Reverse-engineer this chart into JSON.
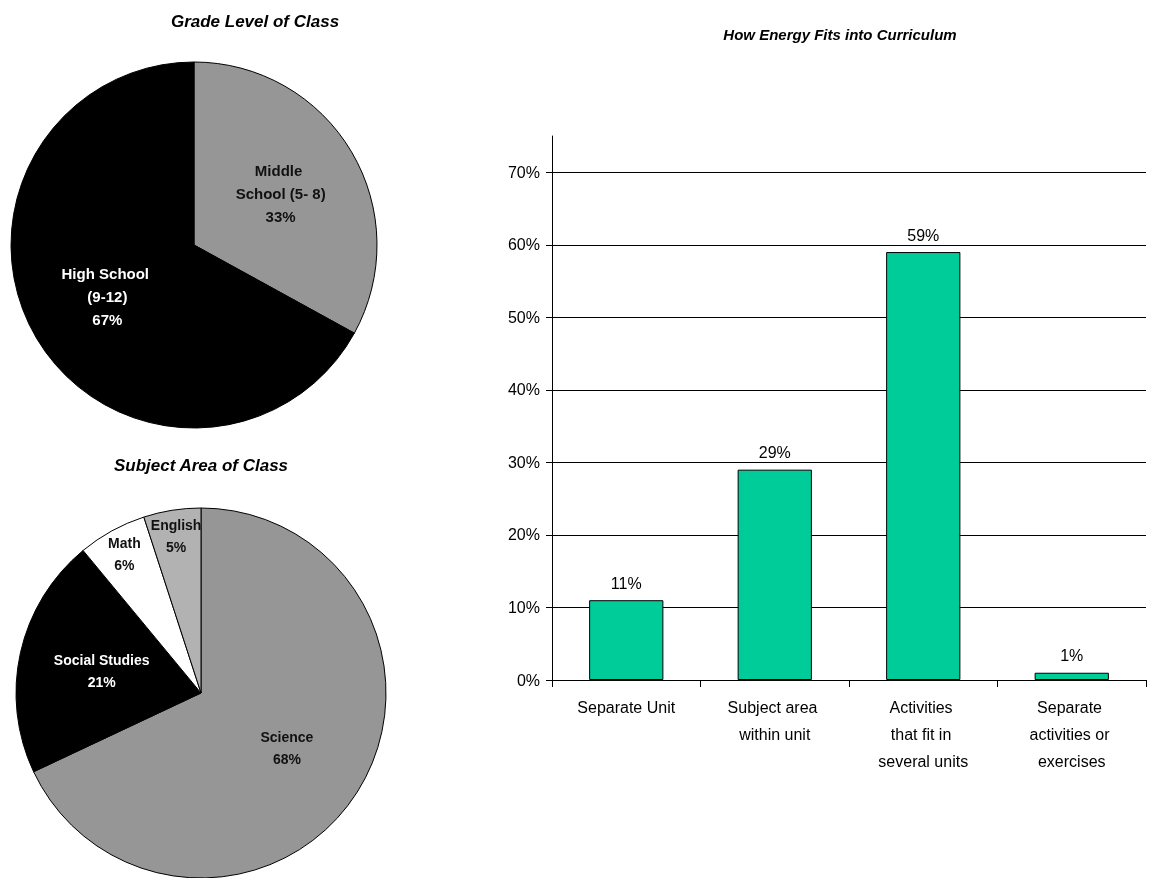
{
  "chart_data": [
    {
      "type": "pie",
      "title": "Grade Level of Class",
      "categories": [
        "Middle School (5- 8)",
        "High School (9-12)"
      ],
      "values": [
        33,
        67
      ],
      "colors": [
        "#969696",
        "#000000"
      ],
      "value_labels": [
        "33%",
        "67%"
      ]
    },
    {
      "type": "bar",
      "title": "How Energy Fits into Curriculum",
      "categories": [
        "Separate Unit",
        "Subject area within unit",
        "Activities that fit in several units",
        "Separate activities or exercises"
      ],
      "values": [
        11,
        29,
        59,
        1
      ],
      "color": "#00cc99",
      "value_labels": [
        "11%",
        "29%",
        "59%",
        "1%"
      ],
      "ylim": [
        0,
        75
      ],
      "yticks": [
        {
          "value": 0,
          "label": "0%"
        },
        {
          "value": 10,
          "label": "10%"
        },
        {
          "value": 20,
          "label": "20%"
        },
        {
          "value": 30,
          "label": "30%"
        },
        {
          "value": 40,
          "label": "40%"
        },
        {
          "value": 50,
          "label": "50%"
        },
        {
          "value": 60,
          "label": "60%"
        },
        {
          "value": 70,
          "label": "70%"
        }
      ],
      "grid": "y"
    },
    {
      "type": "pie",
      "title": "Subject Area of Class",
      "categories": [
        "Science",
        "Social Studies",
        "Math",
        "English"
      ],
      "values": [
        68,
        21,
        6,
        5
      ],
      "colors": [
        "#969696",
        "#000000",
        "#ffffff",
        "#b2b2b2"
      ],
      "value_labels": [
        "68%",
        "21%",
        "6%",
        "5%"
      ]
    }
  ]
}
